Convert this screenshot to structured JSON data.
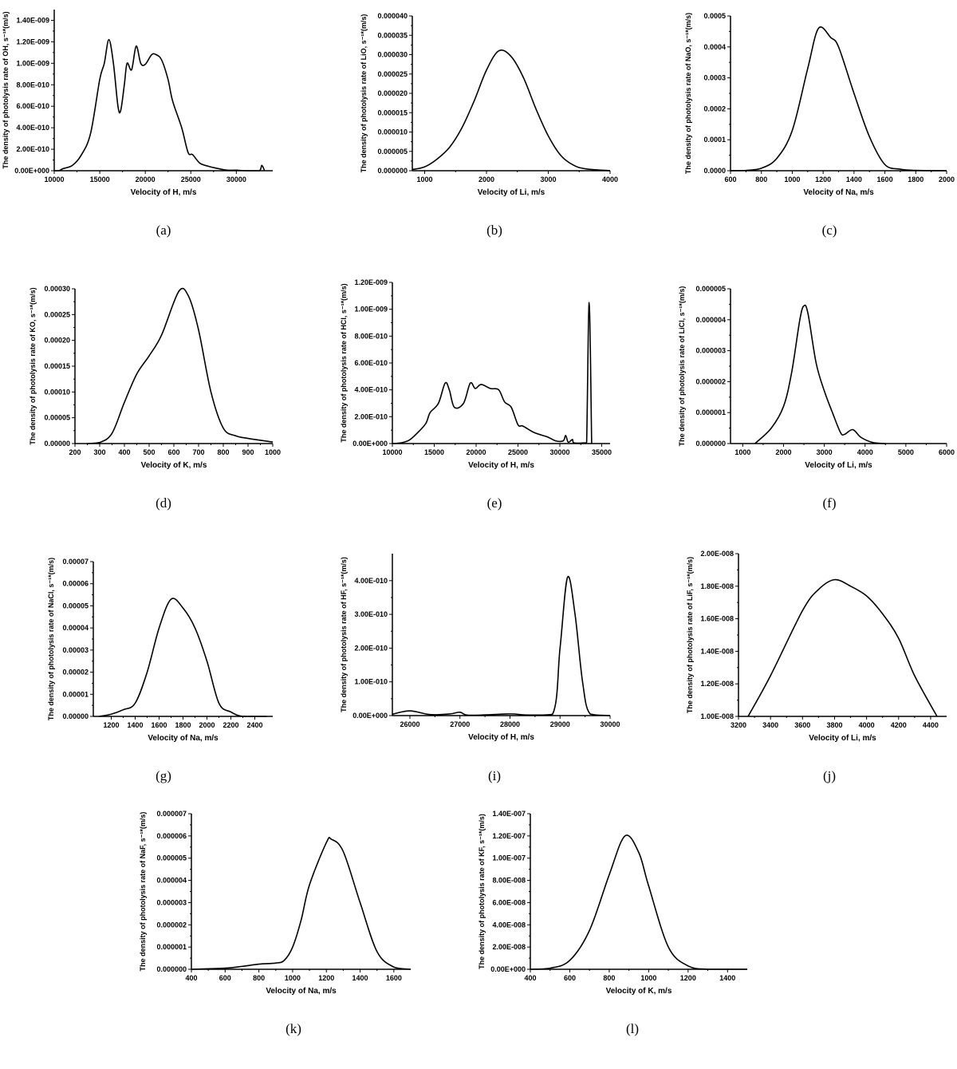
{
  "chart_data": [
    {
      "panel": "(a)",
      "type": "line",
      "xlabel": "Velocity of H, m/s",
      "ylabel": "The density of photolysis rate of OH, s⁻¹*(m/s)",
      "xlim": [
        10000,
        34000
      ],
      "ylim": [
        0,
        1.5e-09
      ],
      "xticks": [
        10000,
        15000,
        20000,
        25000,
        30000
      ],
      "xtick_labels": [
        "10000",
        "15000",
        "20000",
        "25000",
        "30000"
      ],
      "yticks": [
        0,
        2e-10,
        4e-10,
        6e-10,
        8e-10,
        1e-09,
        1.2e-09,
        1.4e-09
      ],
      "ytick_labels": [
        "0.00E+000",
        "2.00E-010",
        "4.00E-010",
        "6.00E-010",
        "8.00E-010",
        "1.00E-009",
        "1.20E-009",
        "1.40E-009"
      ],
      "points": [
        [
          10000,
          0
        ],
        [
          10500,
          0
        ],
        [
          11000,
          2e-11
        ],
        [
          12000,
          5e-11
        ],
        [
          13000,
          1.5e-10
        ],
        [
          14000,
          3.5e-10
        ],
        [
          15000,
          8.5e-10
        ],
        [
          15500,
          1e-09
        ],
        [
          16000,
          1.22e-09
        ],
        [
          16500,
          1e-09
        ],
        [
          17000,
          6e-10
        ],
        [
          17300,
          5.6e-10
        ],
        [
          17700,
          8e-10
        ],
        [
          18000,
          1e-09
        ],
        [
          18500,
          9.4e-10
        ],
        [
          19000,
          1.16e-09
        ],
        [
          19500,
          1e-09
        ],
        [
          20000,
          9.9e-10
        ],
        [
          20700,
          1.08e-09
        ],
        [
          21200,
          1.08e-09
        ],
        [
          21800,
          1.03e-09
        ],
        [
          22500,
          8.5e-10
        ],
        [
          23000,
          6.5e-10
        ],
        [
          24000,
          4e-10
        ],
        [
          24700,
          1.7e-10
        ],
        [
          25200,
          1.5e-10
        ],
        [
          26000,
          7e-11
        ],
        [
          27000,
          4e-11
        ],
        [
          28000,
          2e-11
        ],
        [
          29000,
          5e-12
        ],
        [
          30000,
          5e-12
        ],
        [
          31000,
          0
        ],
        [
          32500,
          0
        ],
        [
          32800,
          5e-11
        ],
        [
          33100,
          0
        ]
      ]
    },
    {
      "panel": "(b)",
      "type": "line",
      "xlabel": "Velocity of Li, m/s",
      "ylabel": "The density of photolysis rate of LiO, s⁻¹*(m/s)",
      "xlim": [
        800,
        4000
      ],
      "ylim": [
        0,
        4e-05
      ],
      "xticks": [
        1000,
        2000,
        3000,
        4000
      ],
      "xtick_labels": [
        "1000",
        "2000",
        "3000",
        "4000"
      ],
      "yticks": [
        0,
        5e-06,
        1e-05,
        1.5e-05,
        2e-05,
        2.5e-05,
        3e-05,
        3.5e-05,
        4e-05
      ],
      "ytick_labels": [
        "0.000000",
        "0.000005",
        "0.000010",
        "0.000015",
        "0.000020",
        "0.000025",
        "0.000030",
        "0.000035",
        "0.000040"
      ],
      "points": [
        [
          800,
          3e-07
        ],
        [
          1000,
          1e-06
        ],
        [
          1200,
          3e-06
        ],
        [
          1400,
          6e-06
        ],
        [
          1600,
          1.1e-05
        ],
        [
          1800,
          1.8e-05
        ],
        [
          2000,
          2.6e-05
        ],
        [
          2200,
          3.1e-05
        ],
        [
          2400,
          2.95e-05
        ],
        [
          2600,
          2.4e-05
        ],
        [
          2800,
          1.6e-05
        ],
        [
          3000,
          9e-06
        ],
        [
          3200,
          4e-06
        ],
        [
          3400,
          1.5e-06
        ],
        [
          3600,
          5e-07
        ],
        [
          4000,
          0
        ]
      ]
    },
    {
      "panel": "(c)",
      "type": "line",
      "xlabel": "Velocity of Na, m/s",
      "ylabel": "The density of photolysis rate of NaO, s⁻¹*(m/s)",
      "xlim": [
        600,
        2000
      ],
      "ylim": [
        0,
        0.0005
      ],
      "xticks": [
        600,
        800,
        1000,
        1200,
        1400,
        1600,
        1800,
        2000
      ],
      "xtick_labels": [
        "600",
        "800",
        "1000",
        "1200",
        "1400",
        "1600",
        "1800",
        "2000"
      ],
      "yticks": [
        0,
        0.0001,
        0.0002,
        0.0003,
        0.0004,
        0.0005
      ],
      "ytick_labels": [
        "0.0000",
        "0.0001",
        "0.0002",
        "0.0003",
        "0.0004",
        "0.0005"
      ],
      "points": [
        [
          600,
          0
        ],
        [
          700,
          1e-06
        ],
        [
          800,
          8e-06
        ],
        [
          900,
          4e-05
        ],
        [
          1000,
          0.00013
        ],
        [
          1100,
          0.00033
        ],
        [
          1170,
          0.00046
        ],
        [
          1250,
          0.00043
        ],
        [
          1300,
          0.0004
        ],
        [
          1400,
          0.00025
        ],
        [
          1500,
          0.00011
        ],
        [
          1600,
          2e-05
        ],
        [
          1700,
          5e-06
        ],
        [
          1800,
          1e-06
        ],
        [
          2000,
          0
        ]
      ]
    },
    {
      "panel": "(d)",
      "type": "line",
      "xlabel": "Velocity of K, m/s",
      "ylabel": "The density of photolysis rate of KO, s⁻¹*(m/s)",
      "xlim": [
        200,
        1000
      ],
      "ylim": [
        0,
        0.0003
      ],
      "xticks": [
        200,
        300,
        400,
        500,
        600,
        700,
        800,
        900,
        1000
      ],
      "xtick_labels": [
        "200",
        "300",
        "400",
        "500",
        "600",
        "700",
        "800",
        "900",
        "1000"
      ],
      "yticks": [
        0,
        5e-05,
        0.0001,
        0.00015,
        0.0002,
        0.00025,
        0.0003
      ],
      "ytick_labels": [
        "0.00000",
        "0.00005",
        "0.00010",
        "0.00015",
        "0.00020",
        "0.00025",
        "0.00030"
      ],
      "points": [
        [
          250,
          0
        ],
        [
          300,
          2e-06
        ],
        [
          350,
          2e-05
        ],
        [
          400,
          8e-05
        ],
        [
          450,
          0.000135
        ],
        [
          500,
          0.00017
        ],
        [
          550,
          0.00021
        ],
        [
          620,
          0.000295
        ],
        [
          660,
          0.000285
        ],
        [
          700,
          0.00022
        ],
        [
          750,
          0.0001
        ],
        [
          800,
          3e-05
        ],
        [
          850,
          1.5e-05
        ],
        [
          900,
          1e-05
        ],
        [
          1000,
          3e-06
        ]
      ]
    },
    {
      "panel": "(e)",
      "type": "line",
      "xlabel": "Velocity of H, m/s",
      "ylabel": "The density of photolysis rate of HCl, s⁻¹*(m/s)",
      "xlim": [
        10000,
        36000
      ],
      "ylim": [
        0,
        1.2e-09
      ],
      "xticks": [
        10000,
        15000,
        20000,
        25000,
        30000,
        35000
      ],
      "xtick_labels": [
        "10000",
        "15000",
        "20000",
        "25000",
        "30000",
        "35000"
      ],
      "yticks": [
        0,
        2e-10,
        4e-10,
        6e-10,
        8e-10,
        1e-09,
        1.2e-09
      ],
      "ytick_labels": [
        "0.00E+000",
        "2.00E-010",
        "4.00E-010",
        "6.00E-010",
        "8.00E-010",
        "1.00E-009",
        "1.20E-009"
      ],
      "points": [
        [
          10000,
          0
        ],
        [
          11000,
          5e-12
        ],
        [
          12000,
          2.5e-11
        ],
        [
          13000,
          8e-11
        ],
        [
          14000,
          1.5e-10
        ],
        [
          14500,
          2.3e-10
        ],
        [
          15500,
          3e-10
        ],
        [
          16300,
          4.5e-10
        ],
        [
          16800,
          4e-10
        ],
        [
          17400,
          2.7e-10
        ],
        [
          18500,
          3e-10
        ],
        [
          19300,
          4.5e-10
        ],
        [
          19900,
          4.1e-10
        ],
        [
          20600,
          4.4e-10
        ],
        [
          21700,
          4.1e-10
        ],
        [
          22700,
          4e-10
        ],
        [
          23400,
          3.1e-10
        ],
        [
          24200,
          2.7e-10
        ],
        [
          25000,
          1.4e-10
        ],
        [
          25600,
          1.3e-10
        ],
        [
          27000,
          8e-11
        ],
        [
          28500,
          5e-11
        ],
        [
          29500,
          2e-11
        ],
        [
          30400,
          2e-11
        ],
        [
          30700,
          6e-11
        ],
        [
          31000,
          1e-11
        ],
        [
          31500,
          3e-11
        ],
        [
          31700,
          5e-12
        ],
        [
          33000,
          5e-12
        ],
        [
          33200,
          1e-11
        ],
        [
          33500,
          1.05e-09
        ],
        [
          33800,
          0
        ]
      ]
    },
    {
      "panel": "(f)",
      "type": "line",
      "xlabel": "Velocity of Li, m/s",
      "ylabel": "The density of photolysis rate of LiCl, s⁻¹*(m/s)",
      "xlim": [
        700,
        6000
      ],
      "ylim": [
        0,
        5e-06
      ],
      "xticks": [
        1000,
        2000,
        3000,
        4000,
        5000,
        6000
      ],
      "xtick_labels": [
        "1000",
        "2000",
        "3000",
        "4000",
        "5000",
        "6000"
      ],
      "yticks": [
        0,
        1e-06,
        2e-06,
        3e-06,
        4e-06,
        5e-06
      ],
      "ytick_labels": [
        "0.000000",
        "0.000001",
        "0.000002",
        "0.000003",
        "0.000004",
        "0.000005"
      ],
      "points": [
        [
          1300,
          0
        ],
        [
          1700,
          5e-07
        ],
        [
          2000,
          1.2e-06
        ],
        [
          2200,
          2.3e-06
        ],
        [
          2400,
          4e-06
        ],
        [
          2500,
          4.45e-06
        ],
        [
          2600,
          4.2e-06
        ],
        [
          2800,
          2.6e-06
        ],
        [
          3000,
          1.7e-06
        ],
        [
          3200,
          1e-06
        ],
        [
          3400,
          3.5e-07
        ],
        [
          3500,
          3e-07
        ],
        [
          3700,
          4.5e-07
        ],
        [
          3900,
          2e-07
        ],
        [
          4200,
          3e-08
        ],
        [
          4500,
          0
        ]
      ]
    },
    {
      "panel": "(g)",
      "type": "line",
      "xlabel": "Velocity of Na, m/s",
      "ylabel": "The density of photolysis rate of NaCl, s⁻¹*(m/s)",
      "xlim": [
        1050,
        2550
      ],
      "ylim": [
        0,
        7e-05
      ],
      "xticks": [
        1200,
        1400,
        1600,
        1800,
        2000,
        2200,
        2400
      ],
      "xtick_labels": [
        "1200",
        "1400",
        "1600",
        "1800",
        "2000",
        "2200",
        "2400"
      ],
      "yticks": [
        0,
        1e-05,
        2e-05,
        3e-05,
        4e-05,
        5e-05,
        6e-05,
        7e-05
      ],
      "ytick_labels": [
        "0.00000",
        "0.00001",
        "0.00002",
        "0.00003",
        "0.00004",
        "0.00005",
        "0.00006",
        "0.00007"
      ],
      "points": [
        [
          1100,
          0
        ],
        [
          1200,
          1e-06
        ],
        [
          1300,
          3e-06
        ],
        [
          1400,
          6e-06
        ],
        [
          1500,
          2e-05
        ],
        [
          1600,
          4e-05
        ],
        [
          1700,
          5.3e-05
        ],
        [
          1800,
          4.9e-05
        ],
        [
          1900,
          4e-05
        ],
        [
          2000,
          2.5e-05
        ],
        [
          2100,
          6e-06
        ],
        [
          2200,
          2e-06
        ],
        [
          2300,
          0
        ],
        [
          2500,
          0
        ]
      ]
    },
    {
      "panel": "(i)",
      "type": "line",
      "xlabel": "Velocity of H, m/s",
      "ylabel": "The density of photolysis rate of HF, s⁻¹*(m/s)",
      "xlim": [
        25650,
        30000
      ],
      "ylim": [
        0,
        4.8e-10
      ],
      "xticks": [
        26000,
        27000,
        28000,
        29000,
        30000
      ],
      "xtick_labels": [
        "26000",
        "27000",
        "28000",
        "29000",
        "30000"
      ],
      "yticks": [
        0,
        1e-10,
        2e-10,
        3e-10,
        4e-10
      ],
      "ytick_labels": [
        "0.00E+000",
        "1.00E-010",
        "2.00E-010",
        "3.00E-010",
        "4.00E-010"
      ],
      "points": [
        [
          25650,
          4e-12
        ],
        [
          26000,
          1.4e-11
        ],
        [
          26400,
          3e-12
        ],
        [
          26800,
          5e-12
        ],
        [
          27000,
          1e-11
        ],
        [
          27200,
          1e-12
        ],
        [
          28000,
          5e-12
        ],
        [
          28300,
          2e-12
        ],
        [
          28850,
          4e-12
        ],
        [
          29000,
          2e-10
        ],
        [
          29150,
          4.1e-10
        ],
        [
          29300,
          3e-10
        ],
        [
          29450,
          1e-10
        ],
        [
          29600,
          5e-12
        ],
        [
          30000,
          0
        ]
      ]
    },
    {
      "panel": "(j)",
      "type": "line",
      "xlabel": "Velocity of Li, m/s",
      "ylabel": "The density of photolysis rate of LiF, s⁻¹*(m/s)",
      "xlim": [
        3200,
        4500
      ],
      "ylim": [
        1e-08,
        2e-08
      ],
      "xticks": [
        3200,
        3400,
        3600,
        3800,
        4000,
        4200,
        4400
      ],
      "xtick_labels": [
        "3200",
        "3400",
        "3600",
        "3800",
        "4000",
        "4200",
        "4400"
      ],
      "yticks": [
        1e-08,
        1.2e-08,
        1.4e-08,
        1.6e-08,
        1.8e-08,
        2e-08
      ],
      "ytick_labels": [
        "1.00E-008",
        "1.20E-008",
        "1.40E-008",
        "1.60E-008",
        "1.80E-008",
        "2.00E-008"
      ],
      "points": [
        [
          3260,
          1e-08
        ],
        [
          3400,
          1.25e-08
        ],
        [
          3600,
          1.65e-08
        ],
        [
          3700,
          1.78e-08
        ],
        [
          3800,
          1.84e-08
        ],
        [
          3900,
          1.8e-08
        ],
        [
          4000,
          1.74e-08
        ],
        [
          4100,
          1.63e-08
        ],
        [
          4200,
          1.48e-08
        ],
        [
          4300,
          1.25e-08
        ],
        [
          4440,
          1e-08
        ]
      ]
    },
    {
      "panel": "(k)",
      "type": "line",
      "xlabel": "Velocity of Na, m/s",
      "ylabel": "The density of photolysis rate of NaF, s⁻¹*(m/s)",
      "xlim": [
        400,
        1700
      ],
      "ylim": [
        0,
        7e-06
      ],
      "xticks": [
        400,
        600,
        800,
        1000,
        1200,
        1400,
        1600
      ],
      "xtick_labels": [
        "400",
        "600",
        "800",
        "1000",
        "1200",
        "1400",
        "1600"
      ],
      "yticks": [
        0,
        1e-06,
        2e-06,
        3e-06,
        4e-06,
        5e-06,
        6e-06,
        7e-06
      ],
      "ytick_labels": [
        "0.000000",
        "0.000001",
        "0.000002",
        "0.000003",
        "0.000004",
        "0.000005",
        "0.000006",
        "0.000007"
      ],
      "points": [
        [
          400,
          0
        ],
        [
          600,
          5e-08
        ],
        [
          700,
          1.3e-07
        ],
        [
          800,
          2.3e-07
        ],
        [
          900,
          2.8e-07
        ],
        [
          950,
          4e-07
        ],
        [
          1000,
          1e-06
        ],
        [
          1050,
          2.2e-06
        ],
        [
          1100,
          3.8e-06
        ],
        [
          1200,
          5.7e-06
        ],
        [
          1230,
          5.85e-06
        ],
        [
          1300,
          5.3e-06
        ],
        [
          1400,
          3e-06
        ],
        [
          1500,
          8e-07
        ],
        [
          1600,
          1e-07
        ],
        [
          1700,
          0
        ]
      ]
    },
    {
      "panel": "(l)",
      "type": "line",
      "xlabel": "Velocity of K, m/s",
      "ylabel": "The density of photolysis rate of KF, s⁻¹*(m/s)",
      "xlim": [
        400,
        1500
      ],
      "ylim": [
        0,
        1.4e-07
      ],
      "xticks": [
        400,
        600,
        800,
        1000,
        1200,
        1400
      ],
      "xtick_labels": [
        "400",
        "600",
        "800",
        "1000",
        "1200",
        "1400"
      ],
      "yticks": [
        0,
        2e-08,
        4e-08,
        6e-08,
        8e-08,
        1e-07,
        1.2e-07,
        1.4e-07
      ],
      "ytick_labels": [
        "0.00E+000",
        "2.00E-008",
        "4.00E-008",
        "6.00E-008",
        "8.00E-008",
        "1.00E-007",
        "1.20E-007",
        "1.40E-007"
      ],
      "points": [
        [
          400,
          0
        ],
        [
          500,
          1e-09
        ],
        [
          600,
          8e-09
        ],
        [
          700,
          3.5e-08
        ],
        [
          800,
          8.5e-08
        ],
        [
          880,
          1.2e-07
        ],
        [
          950,
          1.05e-07
        ],
        [
          1000,
          7.5e-08
        ],
        [
          1100,
          2e-08
        ],
        [
          1200,
          3e-09
        ],
        [
          1300,
          0
        ],
        [
          1500,
          0
        ]
      ]
    }
  ]
}
